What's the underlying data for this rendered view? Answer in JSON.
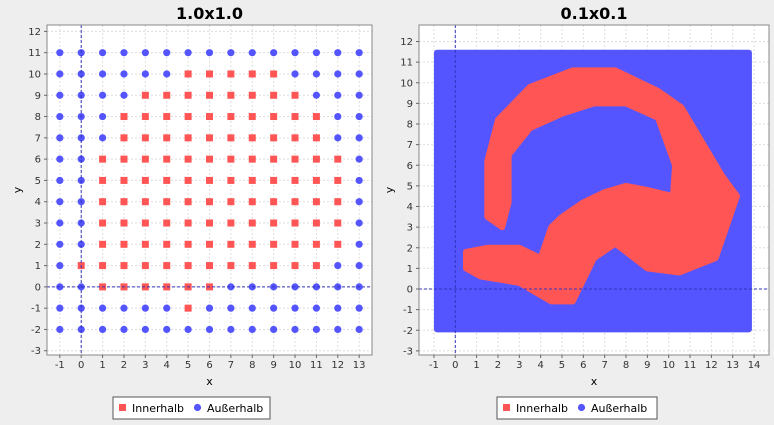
{
  "colors": {
    "inside": "#ff5555",
    "outside": "#5555ff",
    "background": "#eeeeee",
    "plot_bg": "#ffffff",
    "grid": "#dddddd",
    "crosshair": "#3333bb"
  },
  "chart_data": [
    {
      "type": "scatter",
      "title": "1.0x1.0",
      "xlabel": "x",
      "ylabel": "y",
      "xlim": [
        -1.6,
        13.6
      ],
      "ylim": [
        -3.2,
        12.3
      ],
      "xticks": [
        -1,
        0,
        1,
        2,
        3,
        4,
        5,
        6,
        7,
        8,
        9,
        10,
        11,
        12,
        13
      ],
      "yticks": [
        -3,
        -2,
        -1,
        0,
        1,
        2,
        3,
        4,
        5,
        6,
        7,
        8,
        9,
        10,
        11,
        12
      ],
      "grid": true,
      "legend_position": "bottom-center",
      "grid_x": [
        -1,
        13
      ],
      "grid_y": [
        -2,
        11
      ],
      "step": 1,
      "series": [
        {
          "name": "Innerhalb",
          "marker": "square",
          "color": "#ff5555",
          "rows": [
            {
              "y": 10,
              "x": [
                5,
                6,
                7,
                8,
                9
              ]
            },
            {
              "y": 9,
              "x": [
                3,
                4,
                5,
                6,
                7,
                8,
                9,
                10
              ]
            },
            {
              "y": 8,
              "x": [
                2,
                3,
                4,
                5,
                6,
                7,
                8,
                9,
                10,
                11
              ]
            },
            {
              "y": 7,
              "x": [
                2,
                3,
                4,
                5,
                6,
                7,
                8,
                9,
                10,
                11
              ]
            },
            {
              "y": 6,
              "x": [
                1,
                2,
                3,
                4,
                5,
                6,
                7,
                8,
                9,
                10,
                11,
                12
              ]
            },
            {
              "y": 5,
              "x": [
                1,
                2,
                3,
                4,
                5,
                6,
                7,
                8,
                9,
                10,
                11,
                12
              ]
            },
            {
              "y": 4,
              "x": [
                1,
                2,
                3,
                4,
                5,
                6,
                7,
                8,
                9,
                10,
                11,
                12
              ]
            },
            {
              "y": 3,
              "x": [
                1,
                2,
                3,
                4,
                5,
                6,
                7,
                8,
                9,
                10,
                11,
                12
              ]
            },
            {
              "y": 2,
              "x": [
                1,
                2,
                3,
                4,
                5,
                6,
                7,
                8,
                9,
                10,
                11,
                12
              ]
            },
            {
              "y": 1,
              "x": [
                0,
                1,
                2,
                3,
                4,
                5,
                6,
                7,
                8,
                9,
                10,
                11
              ]
            },
            {
              "y": 0,
              "x": [
                1,
                2,
                3,
                4,
                5,
                6
              ]
            },
            {
              "y": -1,
              "x": [
                5
              ]
            }
          ]
        },
        {
          "name": "Außerhalb",
          "marker": "circle",
          "color": "#5555ff",
          "rows": "all remaining integer grid points for x in [-1,13], y in [-2,11]"
        }
      ]
    },
    {
      "type": "scatter",
      "title": "0.1x0.1",
      "xlabel": "x",
      "ylabel": "y",
      "xlim": [
        -1.7,
        14.7
      ],
      "ylim": [
        -3.2,
        12.8
      ],
      "xticks": [
        -1,
        0,
        1,
        2,
        3,
        4,
        5,
        6,
        7,
        8,
        9,
        10,
        11,
        12,
        13,
        14
      ],
      "yticks": [
        -3,
        -2,
        -1,
        0,
        1,
        2,
        3,
        4,
        5,
        6,
        7,
        8,
        9,
        10,
        11,
        12
      ],
      "grid": true,
      "legend_position": "bottom-center",
      "extent": {
        "x": [
          -1,
          13.9
        ],
        "y": [
          -2.1,
          11.6
        ]
      },
      "step": 0.1,
      "series": [
        {
          "name": "Innerhalb",
          "marker": "square",
          "color": "#ff5555",
          "region": {
            "path": [
              [
                1.5,
                3.5
              ],
              [
                1.5,
                6.2
              ],
              [
                2,
                8.2
              ],
              [
                3.5,
                9.8
              ],
              [
                5.5,
                10.6
              ],
              [
                7.5,
                10.6
              ],
              [
                9.5,
                9.6
              ],
              [
                10.6,
                8.8
              ],
              [
                12.5,
                5.5
              ],
              [
                13.2,
                4.5
              ],
              [
                12.2,
                1.5
              ],
              [
                10.5,
                0.8
              ],
              [
                9,
                1
              ],
              [
                7.5,
                2.2
              ],
              [
                6.5,
                1.5
              ],
              [
                5.5,
                -0.6
              ],
              [
                4.5,
                -0.6
              ],
              [
                3,
                0.3
              ],
              [
                1.2,
                0.6
              ],
              [
                0.5,
                1
              ],
              [
                0.5,
                1.8
              ],
              [
                1.5,
                2
              ],
              [
                3,
                2
              ],
              [
                4,
                1.5
              ],
              [
                4.5,
                3
              ],
              [
                5,
                3.5
              ],
              [
                6,
                4.2
              ],
              [
                7,
                4.7
              ],
              [
                8,
                5
              ],
              [
                9,
                4.8
              ],
              [
                10.2,
                4.5
              ],
              [
                10.3,
                6
              ],
              [
                9.5,
                8.3
              ],
              [
                8,
                9
              ],
              [
                6.5,
                9
              ],
              [
                5,
                8.5
              ],
              [
                3.5,
                7.8
              ],
              [
                2.5,
                6.5
              ],
              [
                2.5,
                4.2
              ],
              [
                2.2,
                3
              ]
            ],
            "width": 1.9
          }
        },
        {
          "name": "Außerhalb",
          "marker": "circle",
          "color": "#5555ff",
          "region": "remaining area of the extent"
        }
      ]
    }
  ]
}
